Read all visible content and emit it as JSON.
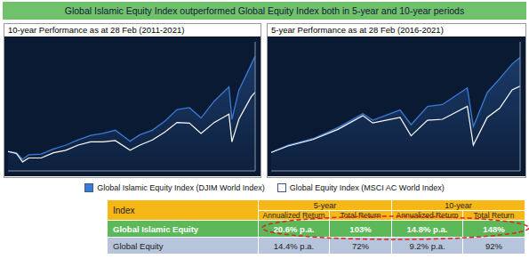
{
  "title": "Global Islamic Equity Index outperformed Global Equity Index both in 5-year and 10-year periods",
  "chart_data": [
    {
      "type": "line",
      "title": "10-year Performance as at 28 Feb (2011-2021)",
      "x": [
        2011.16,
        2011.5,
        2011.75,
        2012.0,
        2012.5,
        2013.0,
        2013.5,
        2014.0,
        2014.5,
        2015.0,
        2015.5,
        2016.1,
        2016.5,
        2017.0,
        2017.5,
        2018.0,
        2018.5,
        2018.97,
        2019.5,
        2020.1,
        2020.22,
        2020.5,
        2021.0,
        2021.16
      ],
      "xlim": [
        2011.16,
        2021.16
      ],
      "ylim": [
        70,
        270
      ],
      "tick_labels": false,
      "series": [
        {
          "name": "Global Islamic Equity Index (DJIM World Index)",
          "color": "#3a7bd5",
          "type": "area",
          "values": [
            100,
            98,
            88,
            95,
            96,
            104,
            110,
            118,
            125,
            128,
            133,
            116,
            126,
            133,
            147,
            165,
            168,
            152,
            178,
            200,
            150,
            195,
            235,
            248
          ]
        },
        {
          "name": "Global Equity Index (MSCI AC World Index)",
          "color": "#ffffff",
          "type": "line",
          "values": [
            100,
            97,
            84,
            90,
            90,
            98,
            102,
            110,
            115,
            115,
            117,
            102,
            110,
            118,
            130,
            145,
            144,
            128,
            145,
            158,
            115,
            150,
            185,
            192
          ]
        }
      ]
    },
    {
      "type": "line",
      "title": "5-year Performance as at 28 Feb (2016-2021)",
      "x": [
        2016.16,
        2016.5,
        2017.0,
        2017.5,
        2018.0,
        2018.2,
        2018.75,
        2018.97,
        2019.3,
        2019.6,
        2020.1,
        2020.22,
        2020.5,
        2020.75,
        2021.0,
        2021.16
      ],
      "xlim": [
        2016.16,
        2021.16
      ],
      "ylim": [
        80,
        220
      ],
      "tick_labels": false,
      "series": [
        {
          "name": "Global Islamic Equity Index (DJIM World Index)",
          "color": "#3a7bd5",
          "type": "area",
          "values": [
            100,
            108,
            115,
            127,
            142,
            135,
            146,
            130,
            150,
            152,
            170,
            128,
            165,
            180,
            196,
            203
          ]
        },
        {
          "name": "Global Equity Index (MSCI AC World Index)",
          "color": "#ffffff",
          "type": "line",
          "values": [
            100,
            107,
            114,
            125,
            140,
            132,
            138,
            118,
            135,
            136,
            150,
            108,
            138,
            148,
            168,
            172
          ]
        }
      ]
    }
  ],
  "table": {
    "header": [
      "Index",
      "5-year",
      "10-year"
    ],
    "subheader": [
      "Annualized Return",
      "Total Return",
      "Annualized Return",
      "Total Return"
    ],
    "rows": [
      [
        "Global Islamic Equity",
        "20.6% p.a.",
        "103%",
        "14.8% p.a.",
        "148%"
      ],
      [
        "Global Equity",
        "14.4% p.a.",
        "72%",
        "9.2% p.a.",
        "92%"
      ]
    ]
  }
}
